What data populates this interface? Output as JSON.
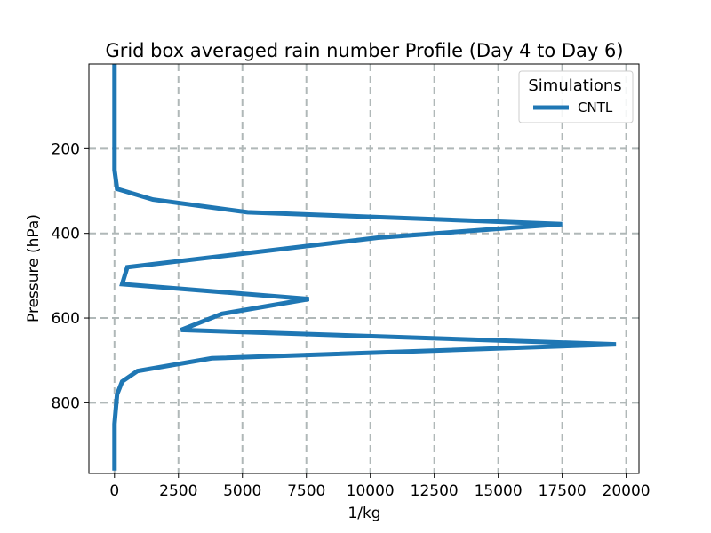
{
  "chart_data": {
    "type": "line",
    "title": "Grid box averaged rain number Profile (Day 4 to Day 6)",
    "xlabel": "1/kg",
    "ylabel": "Pressure (hPa)",
    "xlim": [
      -1000,
      20500
    ],
    "ylim": [
      967,
      0
    ],
    "y_inverted": true,
    "grid": true,
    "xticks": [
      0,
      2500,
      5000,
      7500,
      10000,
      12500,
      15000,
      17500,
      20000
    ],
    "xtick_labels": [
      "0",
      "2500",
      "5000",
      "7500",
      "10000",
      "12500",
      "15000",
      "17500",
      "20000"
    ],
    "yticks": [
      200,
      400,
      600,
      800
    ],
    "ytick_labels": [
      "200",
      "400",
      "600",
      "800"
    ],
    "legend": {
      "title": "Simulations",
      "placement": "top-right"
    },
    "series": [
      {
        "name": "CNTL",
        "color": "#1f77b4",
        "x": [
          0,
          0,
          0,
          0,
          100,
          1500,
          5200,
          17500,
          10300,
          500,
          300,
          7600,
          4200,
          2600,
          19600,
          3800,
          900,
          300,
          100,
          0,
          0,
          0
        ],
        "y": [
          0,
          100,
          200,
          250,
          295,
          320,
          350,
          378,
          410,
          480,
          520,
          555,
          590,
          628,
          662,
          695,
          725,
          750,
          780,
          850,
          900,
          960
        ]
      }
    ]
  }
}
